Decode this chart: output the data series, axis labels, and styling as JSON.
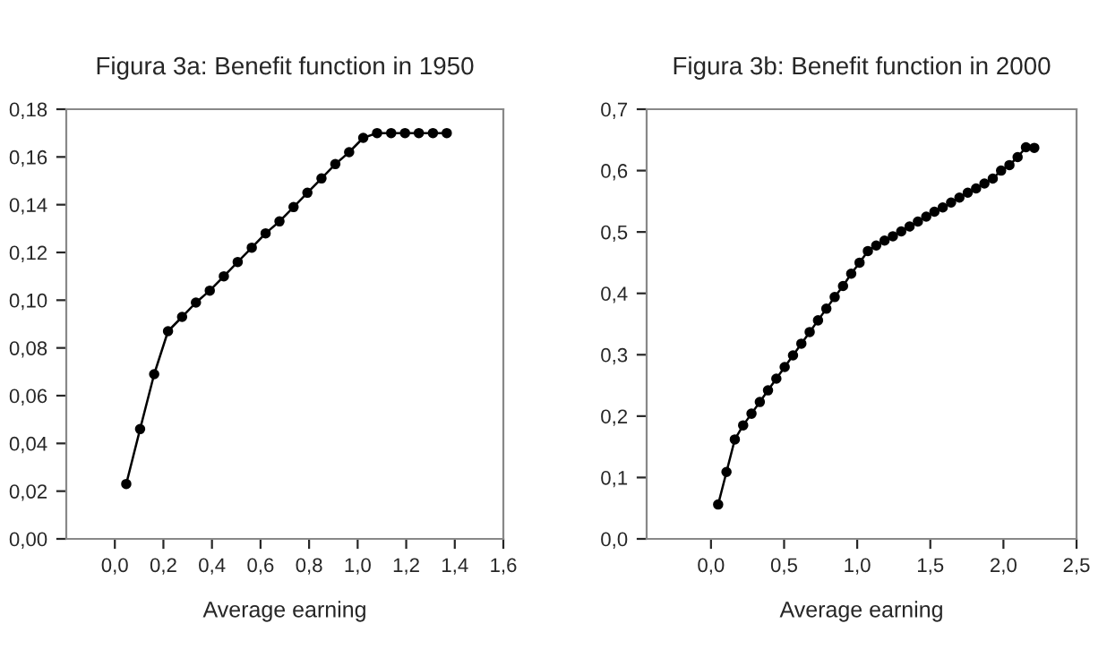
{
  "chart_data": [
    {
      "type": "line",
      "title": "Figura 3a: Benefit function in 1950",
      "xlabel": "Average earning",
      "marker": "circle",
      "line_style": "solid",
      "grid": false,
      "legend": false,
      "xlim": [
        -0.2,
        1.6
      ],
      "ylim": [
        0,
        0.18
      ],
      "xticks": [
        {
          "value": 0,
          "label": "0,0"
        },
        {
          "value": 0.2,
          "label": "0,2"
        },
        {
          "value": 0.4,
          "label": "0,4"
        },
        {
          "value": 0.6,
          "label": "0,6"
        },
        {
          "value": 0.8,
          "label": "0,8"
        },
        {
          "value": 1.0,
          "label": "1,0"
        },
        {
          "value": 1.2,
          "label": "1,2"
        },
        {
          "value": 1.4,
          "label": "1,4"
        },
        {
          "value": 1.6,
          "label": "1,6"
        }
      ],
      "yticks": [
        {
          "value": 0,
          "label": "0,00"
        },
        {
          "value": 0.02,
          "label": "0,02"
        },
        {
          "value": 0.04,
          "label": "0,04"
        },
        {
          "value": 0.06,
          "label": "0,06"
        },
        {
          "value": 0.08,
          "label": "0,08"
        },
        {
          "value": 0.1,
          "label": "0,10"
        },
        {
          "value": 0.12,
          "label": "0,12"
        },
        {
          "value": 0.14,
          "label": "0,14"
        },
        {
          "value": 0.16,
          "label": "0,16"
        },
        {
          "value": 0.18,
          "label": "0,18"
        }
      ],
      "series": [
        {
          "color": "#000000",
          "x": [
            0.047,
            0.104,
            0.162,
            0.219,
            0.277,
            0.334,
            0.391,
            0.449,
            0.506,
            0.564,
            0.621,
            0.678,
            0.736,
            0.793,
            0.851,
            0.908,
            0.965,
            1.023,
            1.08,
            1.138,
            1.195,
            1.252,
            1.31,
            1.367
          ],
          "values": [
            0.023,
            0.046,
            0.069,
            0.087,
            0.093,
            0.099,
            0.104,
            0.11,
            0.116,
            0.122,
            0.128,
            0.133,
            0.139,
            0.145,
            0.151,
            0.157,
            0.162,
            0.168,
            0.17,
            0.17,
            0.17,
            0.17,
            0.17,
            0.17
          ]
        }
      ]
    },
    {
      "type": "line",
      "title": "Figura 3b: Benefit function in 2000",
      "xlabel": "Average earning",
      "marker": "circle",
      "line_style": "solid",
      "grid": false,
      "legend": false,
      "xlim": [
        -0.44,
        2.5
      ],
      "ylim": [
        0,
        0.7
      ],
      "xticks": [
        {
          "value": 0,
          "label": "0,0"
        },
        {
          "value": 0.5,
          "label": "0,5"
        },
        {
          "value": 1.0,
          "label": "1,0"
        },
        {
          "value": 1.5,
          "label": "1,5"
        },
        {
          "value": 2.0,
          "label": "2,0"
        },
        {
          "value": 2.5,
          "label": "2,5"
        }
      ],
      "yticks": [
        {
          "value": 0,
          "label": "0,0"
        },
        {
          "value": 0.1,
          "label": "0,1"
        },
        {
          "value": 0.2,
          "label": "0,2"
        },
        {
          "value": 0.3,
          "label": "0,3"
        },
        {
          "value": 0.4,
          "label": "0,4"
        },
        {
          "value": 0.5,
          "label": "0,5"
        },
        {
          "value": 0.6,
          "label": "0,6"
        },
        {
          "value": 0.7,
          "label": "0,7"
        }
      ],
      "series": [
        {
          "color": "#000000",
          "x": [
            0.049,
            0.106,
            0.163,
            0.22,
            0.277,
            0.334,
            0.39,
            0.447,
            0.504,
            0.561,
            0.618,
            0.675,
            0.732,
            0.789,
            0.846,
            0.903,
            0.959,
            1.016,
            1.073,
            1.13,
            1.187,
            1.244,
            1.301,
            1.358,
            1.415,
            1.472,
            1.528,
            1.585,
            1.642,
            1.699,
            1.756,
            1.813,
            1.87,
            1.927,
            1.984,
            2.041,
            2.097,
            2.154,
            2.211
          ],
          "values": [
            0.056,
            0.109,
            0.162,
            0.185,
            0.204,
            0.223,
            0.242,
            0.261,
            0.28,
            0.299,
            0.318,
            0.337,
            0.356,
            0.375,
            0.394,
            0.412,
            0.432,
            0.45,
            0.469,
            0.478,
            0.486,
            0.493,
            0.501,
            0.509,
            0.517,
            0.525,
            0.533,
            0.54,
            0.548,
            0.556,
            0.564,
            0.571,
            0.579,
            0.587,
            0.6,
            0.609,
            0.622,
            0.638,
            0.637
          ]
        }
      ]
    }
  ]
}
